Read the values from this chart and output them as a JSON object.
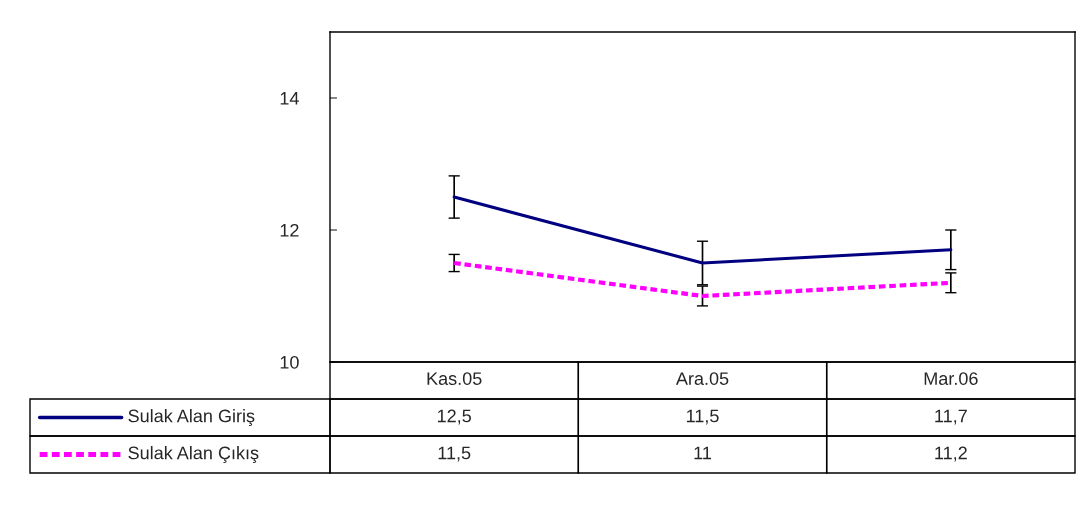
{
  "chart_data": {
    "type": "line",
    "categories": [
      "Kas.05",
      "Ara.05",
      "Mar.06"
    ],
    "series": [
      {
        "name": "Sulak Alan Giriş",
        "color": "#000080",
        "values": [
          12.5,
          11.5,
          11.7
        ],
        "errors": [
          0.32,
          0.33,
          0.3
        ],
        "value_labels": [
          "12,5",
          "11,5",
          "11,7"
        ],
        "line_style": "solid"
      },
      {
        "name": "Sulak Alan Çıkış",
        "color": "#ff00ff",
        "values": [
          11.5,
          11,
          11.2
        ],
        "errors": [
          0.13,
          0.15,
          0.15
        ],
        "value_labels": [
          "11,5",
          "11",
          "11,2"
        ],
        "line_style": "dashed"
      }
    ],
    "ylim": [
      10,
      15
    ],
    "yticks": [
      10,
      12,
      14
    ],
    "grid": false,
    "legend": "bottom left",
    "marker": "none"
  }
}
